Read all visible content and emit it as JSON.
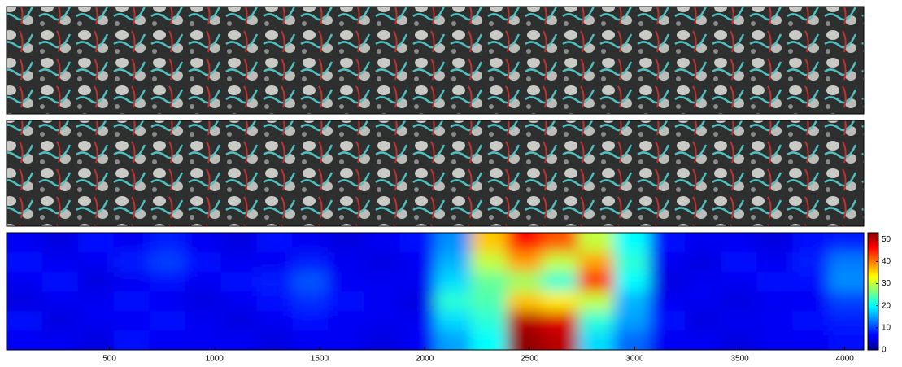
{
  "chart_data": {
    "type": "heatmap",
    "xlim": [
      10,
      4090
    ],
    "xticks": [
      500,
      1000,
      1500,
      2000,
      2500,
      3000,
      3500,
      4000
    ],
    "clim": [
      0,
      53
    ],
    "cticks": [
      0,
      10,
      20,
      30,
      40,
      50
    ],
    "colormap": "jet",
    "z": [
      [
        6,
        5,
        7,
        6,
        8,
        6,
        5,
        7,
        6,
        5,
        6,
        7,
        14,
        36,
        46,
        42,
        30,
        20,
        7,
        6,
        6,
        5,
        7,
        8
      ],
      [
        7,
        6,
        6,
        8,
        10,
        7,
        6,
        6,
        8,
        6,
        5,
        6,
        16,
        30,
        38,
        30,
        38,
        22,
        6,
        5,
        7,
        6,
        8,
        13
      ],
      [
        6,
        7,
        5,
        6,
        7,
        6,
        7,
        8,
        11,
        6,
        6,
        6,
        18,
        25,
        28,
        22,
        46,
        20,
        5,
        6,
        6,
        7,
        7,
        14
      ],
      [
        5,
        6,
        6,
        7,
        6,
        5,
        6,
        7,
        9,
        7,
        6,
        5,
        22,
        24,
        36,
        34,
        30,
        16,
        6,
        6,
        5,
        6,
        6,
        10
      ],
      [
        7,
        5,
        6,
        6,
        7,
        6,
        5,
        6,
        7,
        6,
        6,
        6,
        18,
        22,
        50,
        48,
        22,
        15,
        7,
        5,
        6,
        6,
        7,
        8
      ],
      [
        6,
        6,
        5,
        7,
        6,
        6,
        6,
        5,
        6,
        6,
        5,
        6,
        15,
        20,
        52,
        50,
        18,
        12,
        6,
        6,
        5,
        6,
        6,
        7
      ]
    ]
  }
}
